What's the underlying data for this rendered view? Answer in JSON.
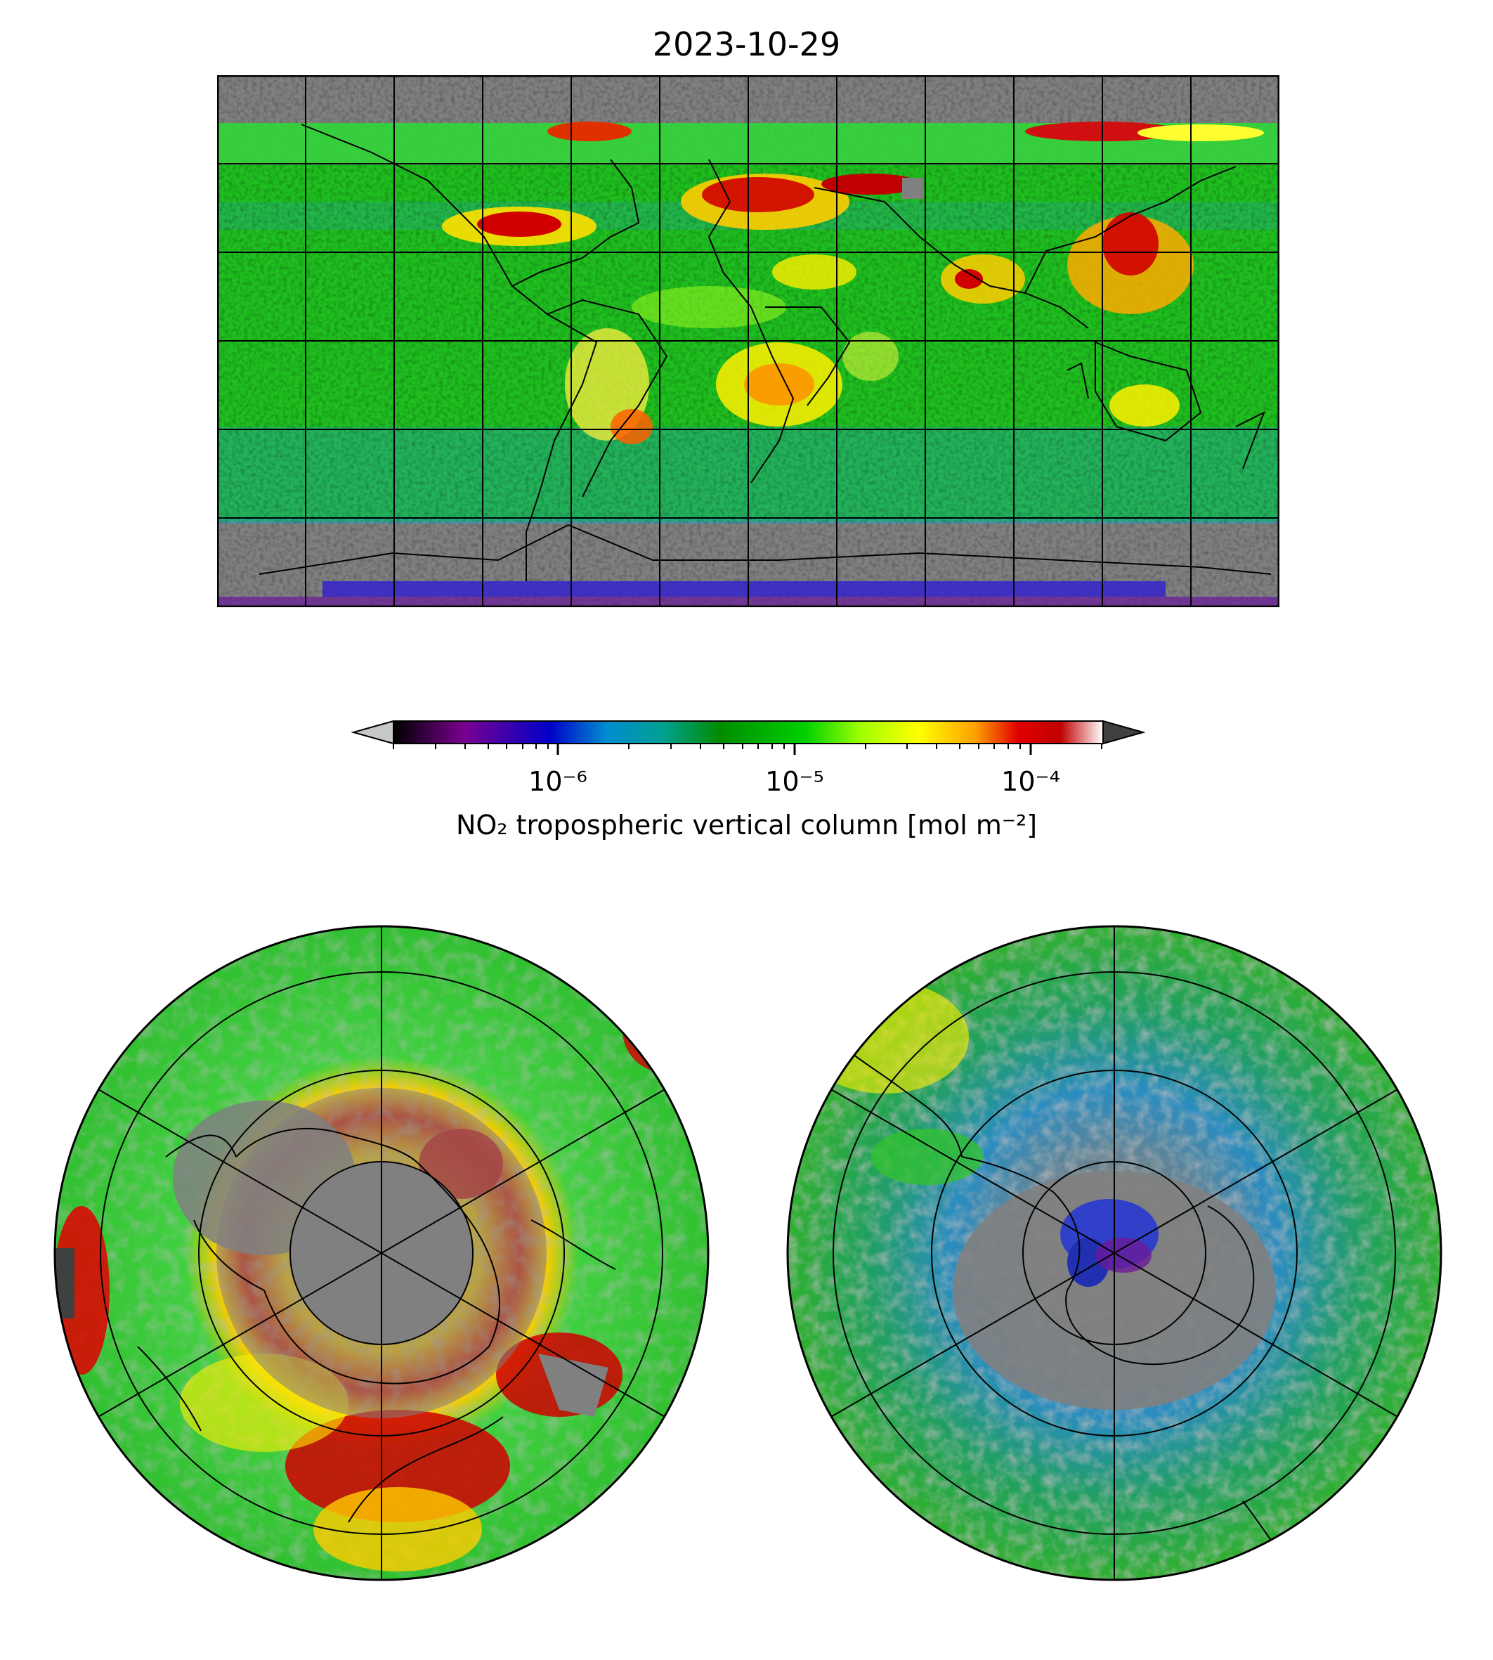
{
  "title": "2023-10-29",
  "colorbar": {
    "label": "NO₂ tropospheric vertical column [mol m⁻²]",
    "tick_labels": [
      "10⁻⁶",
      "10⁻⁵",
      "10⁻⁴"
    ],
    "tick_values": [
      1e-06,
      1e-05,
      0.0001
    ],
    "range": [
      2e-07,
      0.0002
    ],
    "scale": "log",
    "colors": [
      "#000000",
      "#7a0090",
      "#0000c8",
      "#008cd0",
      "#00a090",
      "#008c00",
      "#00d000",
      "#a0ff00",
      "#ffff00",
      "#ffa000",
      "#e00000",
      "#c00000",
      "#ffffff"
    ],
    "under_color": "#c8c8c8",
    "over_color": "#404040"
  },
  "panels": {
    "global": {
      "projection": "equirectangular",
      "gridlines": "30 degree"
    },
    "north_pole": {
      "projection": "north polar stereographic",
      "gridlines": "30 degree"
    },
    "south_pole": {
      "projection": "south polar stereographic",
      "gridlines": "30 degree"
    }
  },
  "colors": {
    "missing": "#808080",
    "coast": "#000000"
  }
}
